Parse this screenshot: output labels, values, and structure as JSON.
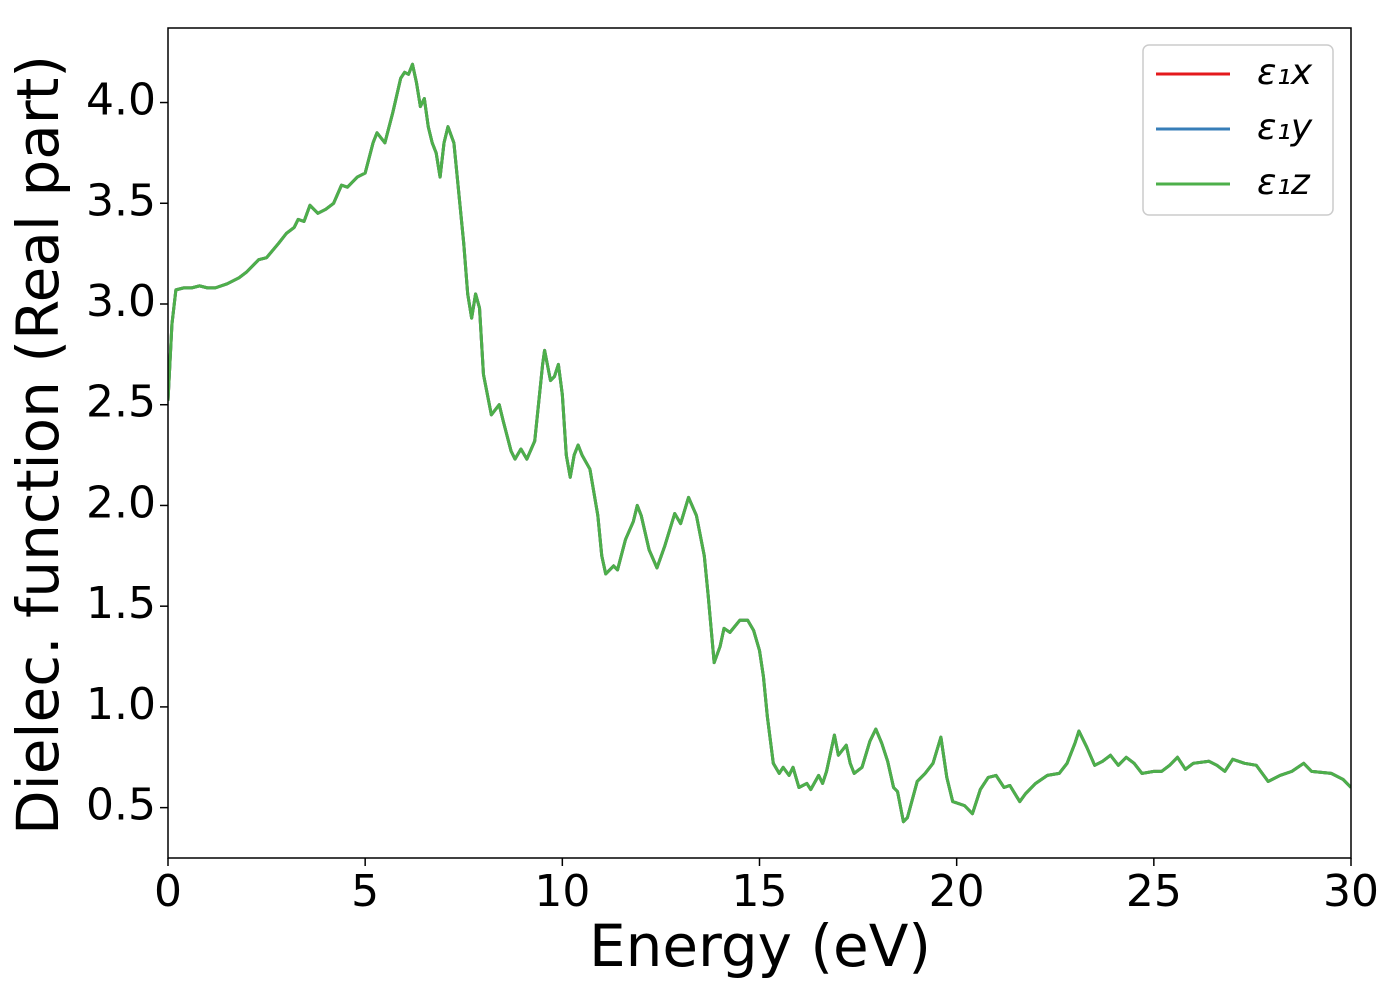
{
  "chart_data": {
    "type": "line",
    "xlabel": "Energy (eV)",
    "ylabel": "Dielec. function (Real part)",
    "x": [
      0,
      0.1,
      0.2,
      0.4,
      0.6,
      0.8,
      1.0,
      1.2,
      1.5,
      1.8,
      2.0,
      2.3,
      2.5,
      2.8,
      3.0,
      3.2,
      3.3,
      3.45,
      3.6,
      3.8,
      4.0,
      4.2,
      4.4,
      4.55,
      4.8,
      5.0,
      5.2,
      5.3,
      5.5,
      5.7,
      5.9,
      6.0,
      6.1,
      6.2,
      6.3,
      6.4,
      6.5,
      6.6,
      6.7,
      6.8,
      6.9,
      7.0,
      7.1,
      7.25,
      7.4,
      7.5,
      7.6,
      7.7,
      7.8,
      7.9,
      8.0,
      8.2,
      8.4,
      8.5,
      8.7,
      8.8,
      8.95,
      9.1,
      9.3,
      9.5,
      9.55,
      9.7,
      9.8,
      9.9,
      10.0,
      10.1,
      10.2,
      10.3,
      10.4,
      10.5,
      10.7,
      10.9,
      11.0,
      11.1,
      11.3,
      11.4,
      11.6,
      11.8,
      11.9,
      12.0,
      12.2,
      12.4,
      12.6,
      12.85,
      13.0,
      13.2,
      13.4,
      13.6,
      13.7,
      13.85,
      14.0,
      14.1,
      14.25,
      14.5,
      14.7,
      14.85,
      15.0,
      15.1,
      15.2,
      15.35,
      15.5,
      15.6,
      15.75,
      15.85,
      16.0,
      16.2,
      16.3,
      16.5,
      16.6,
      16.7,
      16.9,
      17.0,
      17.2,
      17.3,
      17.4,
      17.6,
      17.8,
      17.95,
      18.1,
      18.25,
      18.4,
      18.5,
      18.65,
      18.75,
      19.0,
      19.2,
      19.4,
      19.6,
      19.75,
      19.9,
      20.2,
      20.4,
      20.6,
      20.8,
      21.0,
      21.2,
      21.35,
      21.6,
      21.75,
      22.0,
      22.3,
      22.6,
      22.8,
      23.0,
      23.1,
      23.3,
      23.5,
      23.7,
      23.9,
      24.1,
      24.3,
      24.5,
      24.7,
      25.0,
      25.2,
      25.4,
      25.6,
      25.8,
      26.0,
      26.4,
      26.6,
      26.8,
      27.0,
      27.3,
      27.6,
      27.9,
      28.2,
      28.5,
      28.8,
      29.0,
      29.5,
      29.8,
      30.0
    ],
    "series": [
      {
        "name": "ε₁x",
        "color": "#e41a1c",
        "values": [
          2.52,
          2.9,
          3.07,
          3.08,
          3.08,
          3.09,
          3.08,
          3.08,
          3.1,
          3.13,
          3.16,
          3.22,
          3.23,
          3.3,
          3.35,
          3.38,
          3.42,
          3.41,
          3.49,
          3.45,
          3.47,
          3.5,
          3.59,
          3.58,
          3.63,
          3.65,
          3.8,
          3.85,
          3.8,
          3.95,
          4.12,
          4.15,
          4.14,
          4.19,
          4.1,
          3.98,
          4.02,
          3.88,
          3.8,
          3.75,
          3.63,
          3.8,
          3.88,
          3.8,
          3.5,
          3.3,
          3.05,
          2.93,
          3.05,
          2.98,
          2.65,
          2.45,
          2.5,
          2.42,
          2.27,
          2.23,
          2.28,
          2.23,
          2.32,
          2.7,
          2.77,
          2.62,
          2.64,
          2.7,
          2.55,
          2.25,
          2.14,
          2.25,
          2.3,
          2.25,
          2.18,
          1.95,
          1.75,
          1.66,
          1.7,
          1.68,
          1.83,
          1.92,
          2.0,
          1.95,
          1.78,
          1.69,
          1.8,
          1.96,
          1.91,
          2.04,
          1.95,
          1.75,
          1.55,
          1.22,
          1.3,
          1.39,
          1.37,
          1.43,
          1.43,
          1.38,
          1.28,
          1.15,
          0.95,
          0.72,
          0.67,
          0.7,
          0.66,
          0.7,
          0.6,
          0.62,
          0.59,
          0.66,
          0.62,
          0.68,
          0.86,
          0.76,
          0.81,
          0.72,
          0.67,
          0.7,
          0.83,
          0.89,
          0.82,
          0.73,
          0.6,
          0.58,
          0.43,
          0.45,
          0.63,
          0.67,
          0.72,
          0.85,
          0.65,
          0.53,
          0.51,
          0.47,
          0.59,
          0.65,
          0.66,
          0.6,
          0.61,
          0.53,
          0.57,
          0.62,
          0.66,
          0.67,
          0.72,
          0.82,
          0.88,
          0.8,
          0.71,
          0.73,
          0.76,
          0.71,
          0.75,
          0.72,
          0.67,
          0.68,
          0.68,
          0.71,
          0.75,
          0.69,
          0.72,
          0.73,
          0.71,
          0.68,
          0.74,
          0.72,
          0.71,
          0.63,
          0.66,
          0.68,
          0.72,
          0.68,
          0.67,
          0.64,
          0.6
        ]
      },
      {
        "name": "ε₁y",
        "color": "#377eb8",
        "values": [
          2.52,
          2.9,
          3.07,
          3.08,
          3.08,
          3.09,
          3.08,
          3.08,
          3.1,
          3.13,
          3.16,
          3.22,
          3.23,
          3.3,
          3.35,
          3.38,
          3.42,
          3.41,
          3.49,
          3.45,
          3.47,
          3.5,
          3.59,
          3.58,
          3.63,
          3.65,
          3.8,
          3.85,
          3.8,
          3.95,
          4.12,
          4.15,
          4.14,
          4.19,
          4.1,
          3.98,
          4.02,
          3.88,
          3.8,
          3.75,
          3.63,
          3.8,
          3.88,
          3.8,
          3.5,
          3.3,
          3.05,
          2.93,
          3.05,
          2.98,
          2.65,
          2.45,
          2.5,
          2.42,
          2.27,
          2.23,
          2.28,
          2.23,
          2.32,
          2.7,
          2.77,
          2.62,
          2.64,
          2.7,
          2.55,
          2.25,
          2.14,
          2.25,
          2.3,
          2.25,
          2.18,
          1.95,
          1.75,
          1.66,
          1.7,
          1.68,
          1.83,
          1.92,
          2.0,
          1.95,
          1.78,
          1.69,
          1.8,
          1.96,
          1.91,
          2.04,
          1.95,
          1.75,
          1.55,
          1.22,
          1.3,
          1.39,
          1.37,
          1.43,
          1.43,
          1.38,
          1.28,
          1.15,
          0.95,
          0.72,
          0.67,
          0.7,
          0.66,
          0.7,
          0.6,
          0.62,
          0.59,
          0.66,
          0.62,
          0.68,
          0.86,
          0.76,
          0.81,
          0.72,
          0.67,
          0.7,
          0.83,
          0.89,
          0.82,
          0.73,
          0.6,
          0.58,
          0.43,
          0.45,
          0.63,
          0.67,
          0.72,
          0.85,
          0.65,
          0.53,
          0.51,
          0.47,
          0.59,
          0.65,
          0.66,
          0.6,
          0.61,
          0.53,
          0.57,
          0.62,
          0.66,
          0.67,
          0.72,
          0.82,
          0.88,
          0.8,
          0.71,
          0.73,
          0.76,
          0.71,
          0.75,
          0.72,
          0.67,
          0.68,
          0.68,
          0.71,
          0.75,
          0.69,
          0.72,
          0.73,
          0.71,
          0.68,
          0.74,
          0.72,
          0.71,
          0.63,
          0.66,
          0.68,
          0.72,
          0.68,
          0.67,
          0.64,
          0.6
        ]
      },
      {
        "name": "ε₁z",
        "color": "#4daf4a",
        "values": [
          2.52,
          2.9,
          3.07,
          3.08,
          3.08,
          3.09,
          3.08,
          3.08,
          3.1,
          3.13,
          3.16,
          3.22,
          3.23,
          3.3,
          3.35,
          3.38,
          3.42,
          3.41,
          3.49,
          3.45,
          3.47,
          3.5,
          3.59,
          3.58,
          3.63,
          3.65,
          3.8,
          3.85,
          3.8,
          3.95,
          4.12,
          4.15,
          4.14,
          4.19,
          4.1,
          3.98,
          4.02,
          3.88,
          3.8,
          3.75,
          3.63,
          3.8,
          3.88,
          3.8,
          3.5,
          3.3,
          3.05,
          2.93,
          3.05,
          2.98,
          2.65,
          2.45,
          2.5,
          2.42,
          2.27,
          2.23,
          2.28,
          2.23,
          2.32,
          2.7,
          2.77,
          2.62,
          2.64,
          2.7,
          2.55,
          2.25,
          2.14,
          2.25,
          2.3,
          2.25,
          2.18,
          1.95,
          1.75,
          1.66,
          1.7,
          1.68,
          1.83,
          1.92,
          2.0,
          1.95,
          1.78,
          1.69,
          1.8,
          1.96,
          1.91,
          2.04,
          1.95,
          1.75,
          1.55,
          1.22,
          1.3,
          1.39,
          1.37,
          1.43,
          1.43,
          1.38,
          1.28,
          1.15,
          0.95,
          0.72,
          0.67,
          0.7,
          0.66,
          0.7,
          0.6,
          0.62,
          0.59,
          0.66,
          0.62,
          0.68,
          0.86,
          0.76,
          0.81,
          0.72,
          0.67,
          0.7,
          0.83,
          0.89,
          0.82,
          0.73,
          0.6,
          0.58,
          0.43,
          0.45,
          0.63,
          0.67,
          0.72,
          0.85,
          0.65,
          0.53,
          0.51,
          0.47,
          0.59,
          0.65,
          0.66,
          0.6,
          0.61,
          0.53,
          0.57,
          0.62,
          0.66,
          0.67,
          0.72,
          0.82,
          0.88,
          0.8,
          0.71,
          0.73,
          0.76,
          0.71,
          0.75,
          0.72,
          0.67,
          0.68,
          0.68,
          0.71,
          0.75,
          0.69,
          0.72,
          0.73,
          0.71,
          0.68,
          0.74,
          0.72,
          0.71,
          0.63,
          0.66,
          0.68,
          0.72,
          0.68,
          0.67,
          0.64,
          0.6
        ]
      }
    ],
    "xlim": [
      0,
      30
    ],
    "xticks": [
      0,
      5,
      10,
      15,
      20,
      25,
      30
    ],
    "ylim": [
      0.25,
      4.37
    ],
    "yticks": [
      0.5,
      {
        "value": 1,
        "label": "1.0"
      },
      1.5,
      {
        "value": 2,
        "label": "2.0"
      },
      2.5,
      {
        "value": 3,
        "label": "3.0"
      },
      3.5,
      {
        "value": 4,
        "label": "4.0"
      }
    ],
    "grid": false,
    "legend": "upper right"
  }
}
